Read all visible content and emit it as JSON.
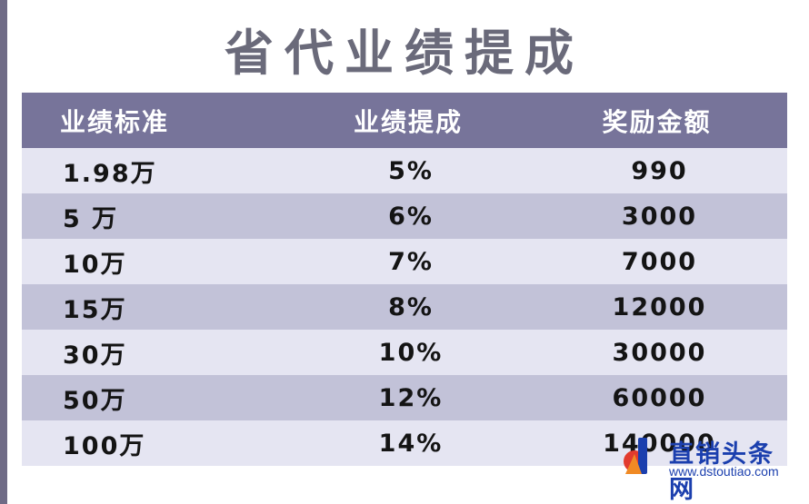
{
  "title": "省代业绩提成",
  "table": {
    "headers": [
      "业绩标准",
      "业绩提成",
      "奖励金额"
    ],
    "rows": [
      [
        "1.98万",
        "5%",
        "990"
      ],
      [
        "5 万",
        "6%",
        "3000"
      ],
      [
        "10万",
        "7%",
        "7000"
      ],
      [
        "15万",
        "8%",
        "12000"
      ],
      [
        "30万",
        "10%",
        "30000"
      ],
      [
        "50万",
        "12%",
        "60000"
      ],
      [
        "100万",
        "14%",
        "140000"
      ]
    ]
  },
  "watermark": {
    "name": "直销头条网",
    "url": "www.dstoutiao.com"
  },
  "colors": {
    "header_bg": "#77749a",
    "row_light": "#e5e5f2",
    "row_dark": "#c2c2d8",
    "title": "#6a6a7a",
    "watermark": "#1b3fae"
  }
}
